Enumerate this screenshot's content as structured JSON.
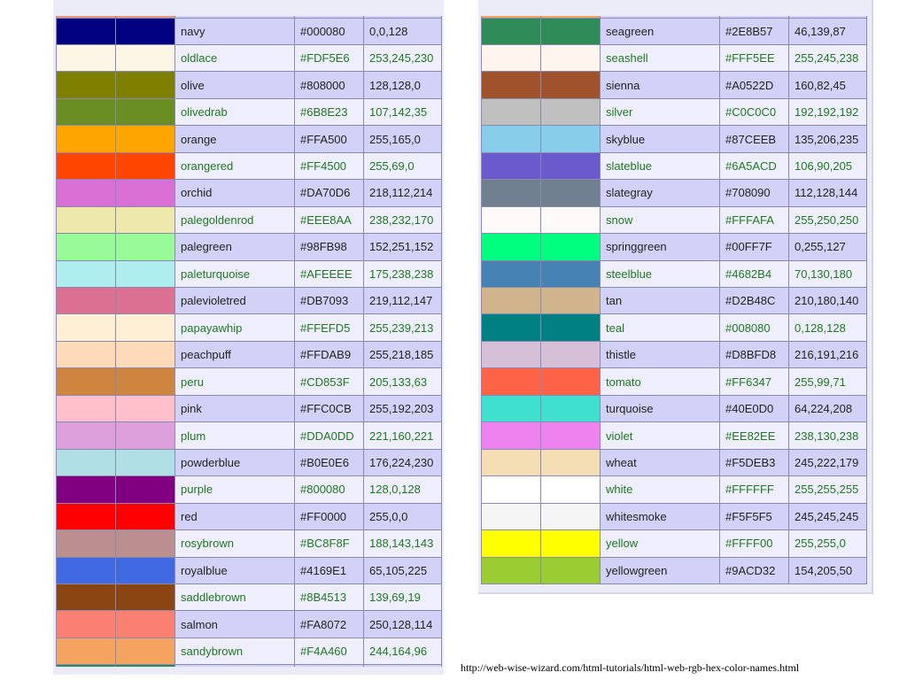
{
  "left_rows": [
    {
      "name": "navy",
      "hex": "#000080",
      "rgb": "0,0,128",
      "color": "#000080"
    },
    {
      "name": "oldlace",
      "hex": "#FDF5E6",
      "rgb": "253,245,230",
      "color": "#FDF5E6"
    },
    {
      "name": "olive",
      "hex": "#808000",
      "rgb": "128,128,0",
      "color": "#808000"
    },
    {
      "name": "olivedrab",
      "hex": "#6B8E23",
      "rgb": "107,142,35",
      "color": "#6B8E23"
    },
    {
      "name": "orange",
      "hex": "#FFA500",
      "rgb": "255,165,0",
      "color": "#FFA500"
    },
    {
      "name": "orangered",
      "hex": "#FF4500",
      "rgb": "255,69,0",
      "color": "#FF4500"
    },
    {
      "name": "orchid",
      "hex": "#DA70D6",
      "rgb": "218,112,214",
      "color": "#DA70D6"
    },
    {
      "name": "palegoldenrod",
      "hex": "#EEE8AA",
      "rgb": "238,232,170",
      "color": "#EEE8AA"
    },
    {
      "name": "palegreen",
      "hex": "#98FB98",
      "rgb": "152,251,152",
      "color": "#98FB98"
    },
    {
      "name": "paleturquoise",
      "hex": "#AFEEEE",
      "rgb": "175,238,238",
      "color": "#AFEEEE"
    },
    {
      "name": "palevioletred",
      "hex": "#DB7093",
      "rgb": "219,112,147",
      "color": "#DB7093"
    },
    {
      "name": "papayawhip",
      "hex": "#FFEFD5",
      "rgb": "255,239,213",
      "color": "#FFEFD5"
    },
    {
      "name": "peachpuff",
      "hex": "#FFDAB9",
      "rgb": "255,218,185",
      "color": "#FFDAB9"
    },
    {
      "name": "peru",
      "hex": "#CD853F",
      "rgb": "205,133,63",
      "color": "#CD853F"
    },
    {
      "name": "pink",
      "hex": "#FFC0CB",
      "rgb": "255,192,203",
      "color": "#FFC0CB"
    },
    {
      "name": "plum",
      "hex": "#DDA0DD",
      "rgb": "221,160,221",
      "color": "#DDA0DD"
    },
    {
      "name": "powderblue",
      "hex": "#B0E0E6",
      "rgb": "176,224,230",
      "color": "#B0E0E6"
    },
    {
      "name": "purple",
      "hex": "#800080",
      "rgb": "128,0,128",
      "color": "#800080"
    },
    {
      "name": "red",
      "hex": "#FF0000",
      "rgb": "255,0,0",
      "color": "#FF0000"
    },
    {
      "name": "rosybrown",
      "hex": "#BC8F8F",
      "rgb": "188,143,143",
      "color": "#BC8F8F"
    },
    {
      "name": "royalblue",
      "hex": "#4169E1",
      "rgb": "65,105,225",
      "color": "#4169E1"
    },
    {
      "name": "saddlebrown",
      "hex": "#8B4513",
      "rgb": "139,69,19",
      "color": "#8B4513"
    },
    {
      "name": "salmon",
      "hex": "#FA8072",
      "rgb": "250,128,114",
      "color": "#FA8072"
    },
    {
      "name": "sandybrown",
      "hex": "#F4A460",
      "rgb": "244,164,96",
      "color": "#F4A460"
    }
  ],
  "right_rows": [
    {
      "name": "seagreen",
      "hex": "#2E8B57",
      "rgb": "46,139,87",
      "color": "#2E8B57"
    },
    {
      "name": "seashell",
      "hex": "#FFF5EE",
      "rgb": "255,245,238",
      "color": "#FFF5EE"
    },
    {
      "name": "sienna",
      "hex": "#A0522D",
      "rgb": "160,82,45",
      "color": "#A0522D"
    },
    {
      "name": "silver",
      "hex": "#C0C0C0",
      "rgb": "192,192,192",
      "color": "#C0C0C0"
    },
    {
      "name": "skyblue",
      "hex": "#87CEEB",
      "rgb": "135,206,235",
      "color": "#87CEEB"
    },
    {
      "name": "slateblue",
      "hex": "#6A5ACD",
      "rgb": "106,90,205",
      "color": "#6A5ACD"
    },
    {
      "name": "slategray",
      "hex": "#708090",
      "rgb": "112,128,144",
      "color": "#708090"
    },
    {
      "name": "snow",
      "hex": "#FFFAFA",
      "rgb": "255,250,250",
      "color": "#FFFAFA"
    },
    {
      "name": "springgreen",
      "hex": "#00FF7F",
      "rgb": "0,255,127",
      "color": "#00FF7F"
    },
    {
      "name": "steelblue",
      "hex": "#4682B4",
      "rgb": "70,130,180",
      "color": "#4682B4"
    },
    {
      "name": "tan",
      "hex": "#D2B48C",
      "rgb": "210,180,140",
      "color": "#D2B48C"
    },
    {
      "name": "teal",
      "hex": "#008080",
      "rgb": "0,128,128",
      "color": "#008080"
    },
    {
      "name": "thistle",
      "hex": "#D8BFD8",
      "rgb": "216,191,216",
      "color": "#D8BFD8"
    },
    {
      "name": "tomato",
      "hex": "#FF6347",
      "rgb": "255,99,71",
      "color": "#FF6347"
    },
    {
      "name": "turquoise",
      "hex": "#40E0D0",
      "rgb": "64,224,208",
      "color": "#40E0D0"
    },
    {
      "name": "violet",
      "hex": "#EE82EE",
      "rgb": "238,130,238",
      "color": "#EE82EE"
    },
    {
      "name": "wheat",
      "hex": "#F5DEB3",
      "rgb": "245,222,179",
      "color": "#F5DEB3"
    },
    {
      "name": "white",
      "hex": "#FFFFFF",
      "rgb": "255,255,255",
      "color": "#FFFFFF"
    },
    {
      "name": "whitesmoke",
      "hex": "#F5F5F5",
      "rgb": "245,245,245",
      "color": "#F5F5F5"
    },
    {
      "name": "yellow",
      "hex": "#FFFF00",
      "rgb": "255,255,0",
      "color": "#FFFF00"
    },
    {
      "name": "yellowgreen",
      "hex": "#9ACD32",
      "rgb": "154,205,50",
      "color": "#9ACD32"
    }
  ],
  "edge_colors": {
    "left_top": "#E9967A",
    "left_bottom": "#2E8B57",
    "right_top": "#F4A460"
  },
  "footer": {
    "url": "http://web-wise-wizard.com/html-tutorials/html-web-rgb-hex-color-names.html"
  }
}
